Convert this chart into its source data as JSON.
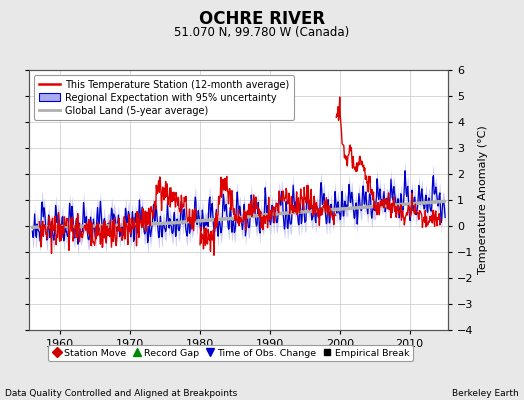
{
  "title": "OCHRE RIVER",
  "subtitle": "51.070 N, 99.780 W (Canada)",
  "ylabel": "Temperature Anomaly (°C)",
  "xlabel_bottom": "Data Quality Controlled and Aligned at Breakpoints",
  "xlabel_right": "Berkeley Earth",
  "ylim": [
    -4,
    6
  ],
  "xlim": [
    1955.5,
    2015.5
  ],
  "yticks": [
    -4,
    -3,
    -2,
    -1,
    0,
    1,
    2,
    3,
    4,
    5,
    6
  ],
  "xticks": [
    1960,
    1970,
    1980,
    1990,
    2000,
    2010
  ],
  "bg_color": "#e8e8e8",
  "plot_bg_color": "#ffffff",
  "grid_color": "#c8c8c8",
  "station_line_color": "#dd0000",
  "regional_line_color": "#0000cc",
  "regional_fill_color": "#aaaaee",
  "global_line_color": "#b0b0b0",
  "legend_box_color": "#ffffff",
  "obs_change_marker_color": "#0000cc",
  "station_move_marker_color": "#cc0000",
  "record_gap_marker_color": "#008800",
  "empirical_break_color": "#000000"
}
